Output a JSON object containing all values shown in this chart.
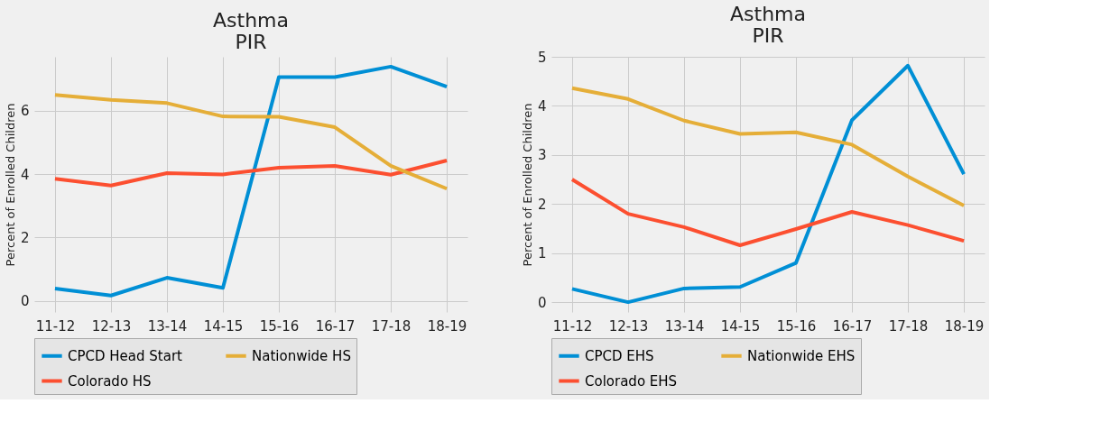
{
  "chart_data": [
    {
      "type": "line",
      "title": "Asthma\nPIR",
      "ylabel": "Percent of Enrolled Children",
      "categories": [
        "11-12",
        "12-13",
        "13-14",
        "14-15",
        "15-16",
        "16-17",
        "17-18",
        "18-19"
      ],
      "ylim": [
        -0.35,
        7.7
      ],
      "yticks": [
        0,
        2,
        4,
        6
      ],
      "grid": true,
      "legend": "bottom",
      "line_style": "solid",
      "marker": "none",
      "series": [
        {
          "name": "CPCD Head Start",
          "color": "#008fd5",
          "values": [
            0.39,
            0.17,
            0.73,
            0.41,
            7.06,
            7.06,
            7.39,
            6.76
          ]
        },
        {
          "name": "Colorado HS",
          "color": "#fc4f30",
          "values": [
            3.85,
            3.64,
            4.03,
            3.99,
            4.2,
            4.26,
            3.98,
            4.43
          ]
        },
        {
          "name": "Nationwide HS",
          "color": "#e5ae38",
          "values": [
            6.5,
            6.34,
            6.24,
            5.82,
            5.81,
            5.48,
            4.26,
            3.54
          ]
        }
      ]
    },
    {
      "type": "line",
      "title": "Asthma\nPIR",
      "ylabel": "Percent of Enrolled Children",
      "categories": [
        "11-12",
        "12-13",
        "13-14",
        "14-15",
        "15-16",
        "16-17",
        "17-18",
        "18-19"
      ],
      "ylim": [
        -0.2,
        5
      ],
      "yticks": [
        0,
        1,
        2,
        3,
        4,
        5
      ],
      "grid": true,
      "legend": "bottom",
      "line_style": "solid",
      "marker": "none",
      "series": [
        {
          "name": "CPCD EHS",
          "color": "#008fd5",
          "values": [
            0.27,
            0.0,
            0.28,
            0.31,
            0.8,
            3.71,
            4.82,
            2.61
          ]
        },
        {
          "name": "Colorado EHS",
          "color": "#fc4f30",
          "values": [
            2.5,
            1.8,
            1.53,
            1.16,
            1.49,
            1.84,
            1.57,
            1.25
          ]
        },
        {
          "name": "Nationwide EHS",
          "color": "#e5ae38",
          "values": [
            4.36,
            4.14,
            3.7,
            3.43,
            3.46,
            3.21,
            2.56,
            1.97
          ]
        }
      ]
    }
  ]
}
